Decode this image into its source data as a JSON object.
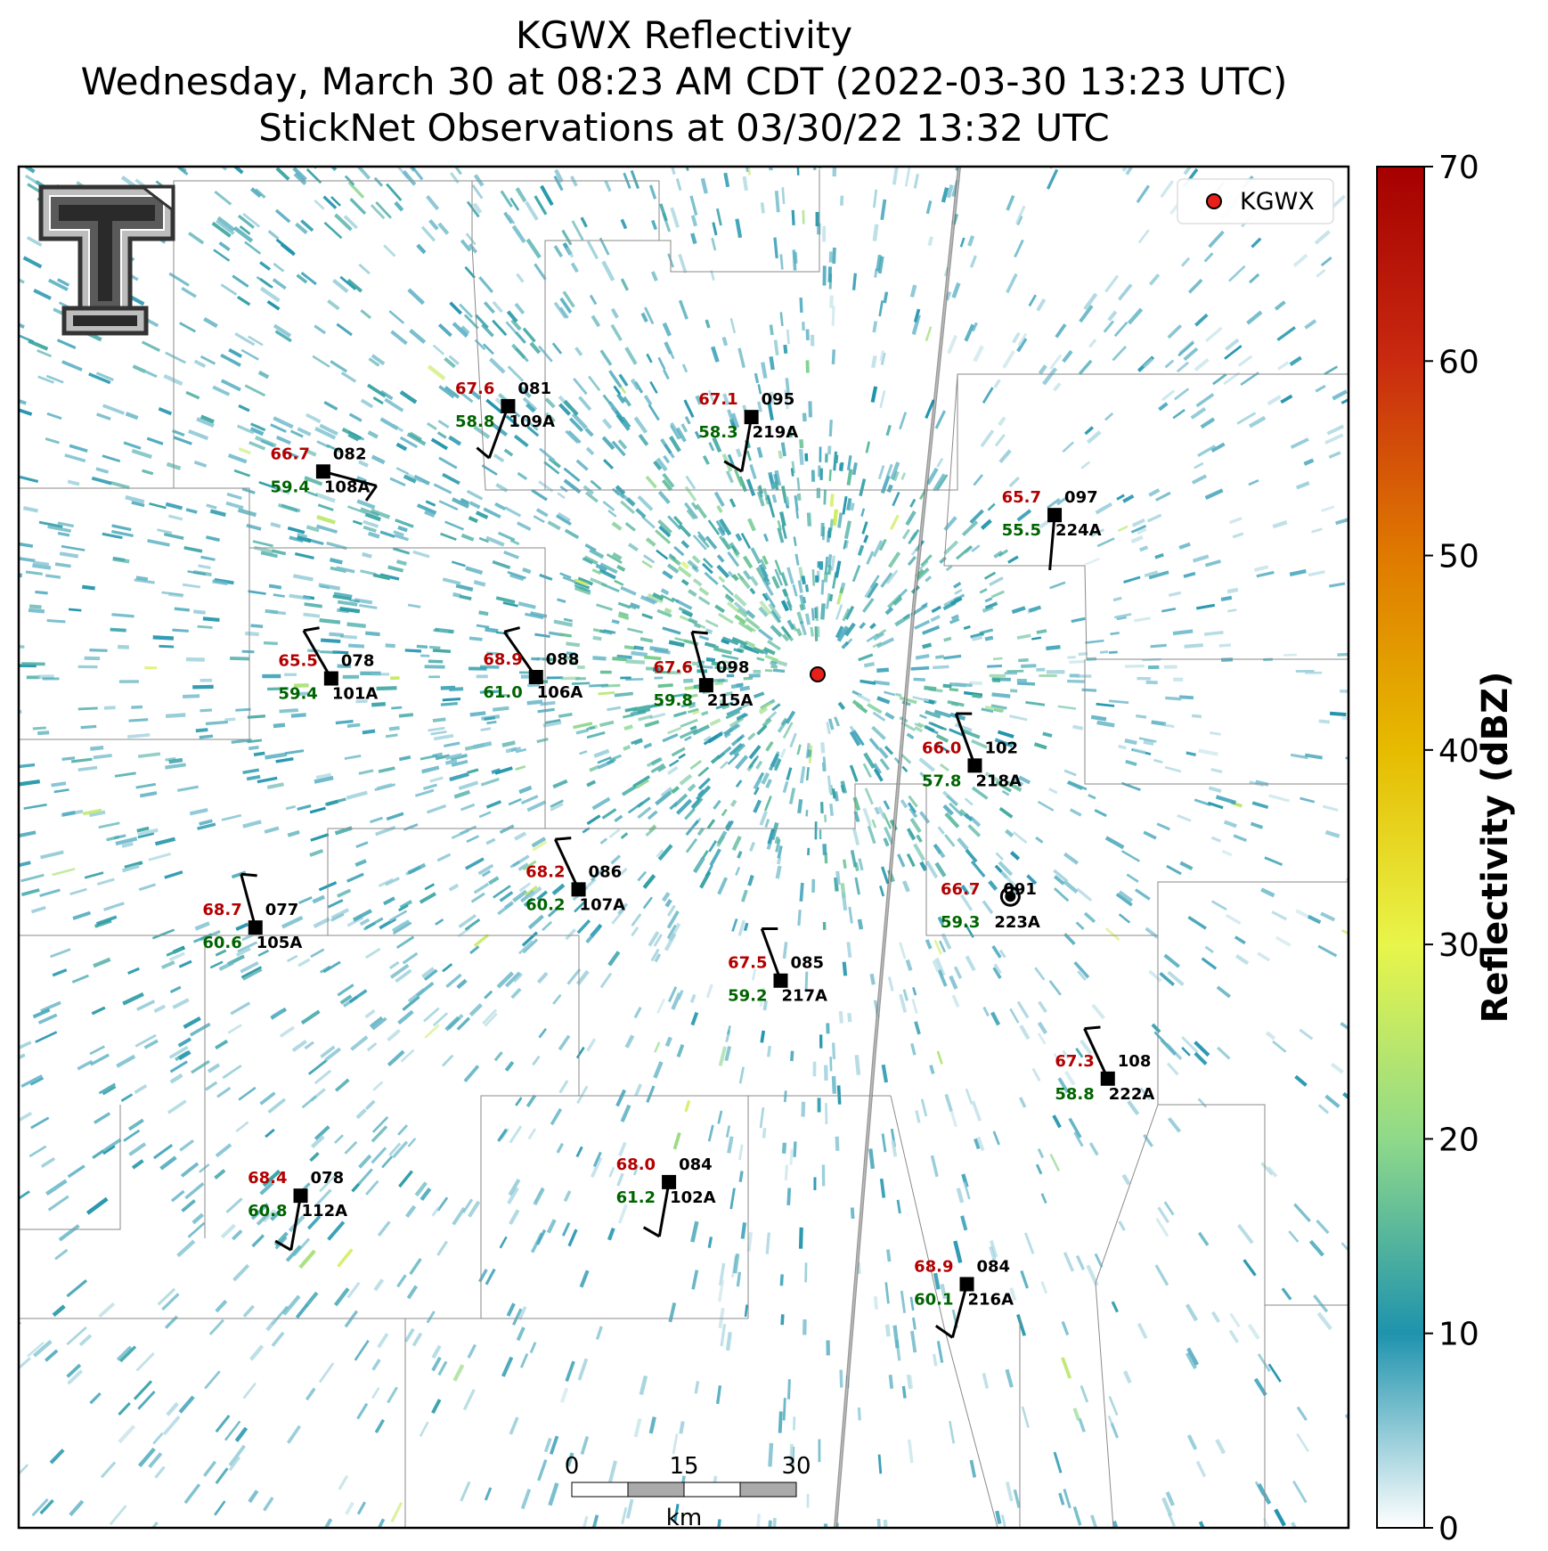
{
  "title": {
    "line1": "KGWX Reflectivity",
    "line2": "Wednesday, March 30 at 08:23 AM CDT (2022-03-30 13:23 UTC)",
    "line3": "StickNet Observations at 03/30/22 13:32 UTC"
  },
  "legend": {
    "label": "KGWX",
    "marker_color": "#e8201a"
  },
  "radar_site": {
    "label": "KGWX",
    "lon": -88.33,
    "lat": 33.9
  },
  "colorbar": {
    "label": "Reflectivity (dBZ)",
    "min": 0,
    "max": 70,
    "ticks": [
      "0",
      "10",
      "20",
      "30",
      "40",
      "50",
      "60",
      "70"
    ],
    "stops": [
      {
        "value": 0,
        "color": "#ffffff"
      },
      {
        "value": 10,
        "color": "#1f93ad"
      },
      {
        "value": 20,
        "color": "#8fd98a"
      },
      {
        "value": 30,
        "color": "#e8f54a"
      },
      {
        "value": 40,
        "color": "#e6bb00"
      },
      {
        "value": 50,
        "color": "#df7a00"
      },
      {
        "value": 60,
        "color": "#c92a10"
      },
      {
        "value": 70,
        "color": "#a50000"
      }
    ]
  },
  "scale_bar": {
    "ticks": [
      "0",
      "15",
      "30"
    ],
    "unit": "km"
  },
  "stations": [
    {
      "id": "109A",
      "temp": "67.6",
      "dew": "58.8",
      "dir": "081",
      "gx": 0.368,
      "gy": 0.176,
      "wind_from": 200,
      "barbs": 0.5
    },
    {
      "id": "219A",
      "temp": "67.1",
      "dew": "58.3",
      "dir": "095",
      "gx": 0.551,
      "gy": 0.184,
      "wind_from": 190,
      "barbs": 0.7
    },
    {
      "id": "108A",
      "temp": "66.7",
      "dew": "59.4",
      "dir": "082",
      "gx": 0.229,
      "gy": 0.224,
      "wind_from": 105,
      "barbs": 0.6
    },
    {
      "id": "224A",
      "temp": "65.7",
      "dew": "55.5",
      "dir": "097",
      "gx": 0.779,
      "gy": 0.256,
      "wind_from": 185,
      "barbs": 0
    },
    {
      "id": "101A",
      "temp": "65.5",
      "dew": "59.4",
      "dir": "078",
      "gx": 0.235,
      "gy": 0.376,
      "wind_from": 330,
      "barbs": 0.5
    },
    {
      "id": "106A",
      "temp": "68.9",
      "dew": "61.0",
      "dir": "088",
      "gx": 0.389,
      "gy": 0.375,
      "wind_from": 325,
      "barbs": 0.5
    },
    {
      "id": "215A",
      "temp": "67.6",
      "dew": "59.8",
      "dir": "098",
      "gx": 0.517,
      "gy": 0.381,
      "wind_from": 345,
      "barbs": 0.5
    },
    {
      "id": "218A",
      "temp": "66.0",
      "dew": "57.8",
      "dir": "102",
      "gx": 0.719,
      "gy": 0.44,
      "wind_from": 340,
      "barbs": 0.5
    },
    {
      "id": "107A",
      "temp": "68.2",
      "dew": "60.2",
      "dir": "086",
      "gx": 0.421,
      "gy": 0.531,
      "wind_from": 335,
      "barbs": 0.5
    },
    {
      "id": "223A",
      "temp": "66.7",
      "dew": "59.3",
      "dir": "091",
      "gx": 0.733,
      "gy": 0.544,
      "wind_from": 0,
      "barbs": 0,
      "calm": true
    },
    {
      "id": "105A",
      "temp": "68.7",
      "dew": "60.6",
      "dir": "077",
      "gx": 0.178,
      "gy": 0.559,
      "wind_from": 345,
      "barbs": 0.5
    },
    {
      "id": "217A",
      "temp": "67.5",
      "dew": "59.2",
      "dir": "085",
      "gx": 0.573,
      "gy": 0.598,
      "wind_from": 340,
      "barbs": 0.5
    },
    {
      "id": "222A",
      "temp": "67.3",
      "dew": "58.8",
      "dir": "108",
      "gx": 0.819,
      "gy": 0.67,
      "wind_from": 335,
      "barbs": 0.5
    },
    {
      "id": "112A",
      "temp": "68.4",
      "dew": "60.8",
      "dir": "078",
      "gx": 0.212,
      "gy": 0.756,
      "wind_from": 190,
      "barbs": 0.6
    },
    {
      "id": "102A",
      "temp": "68.0",
      "dew": "61.2",
      "dir": "084",
      "gx": 0.489,
      "gy": 0.746,
      "wind_from": 190,
      "barbs": 0.6
    },
    {
      "id": "216A",
      "temp": "68.9",
      "dew": "60.1",
      "dir": "084",
      "gx": 0.713,
      "gy": 0.821,
      "wind_from": 195,
      "barbs": 0.7
    }
  ]
}
